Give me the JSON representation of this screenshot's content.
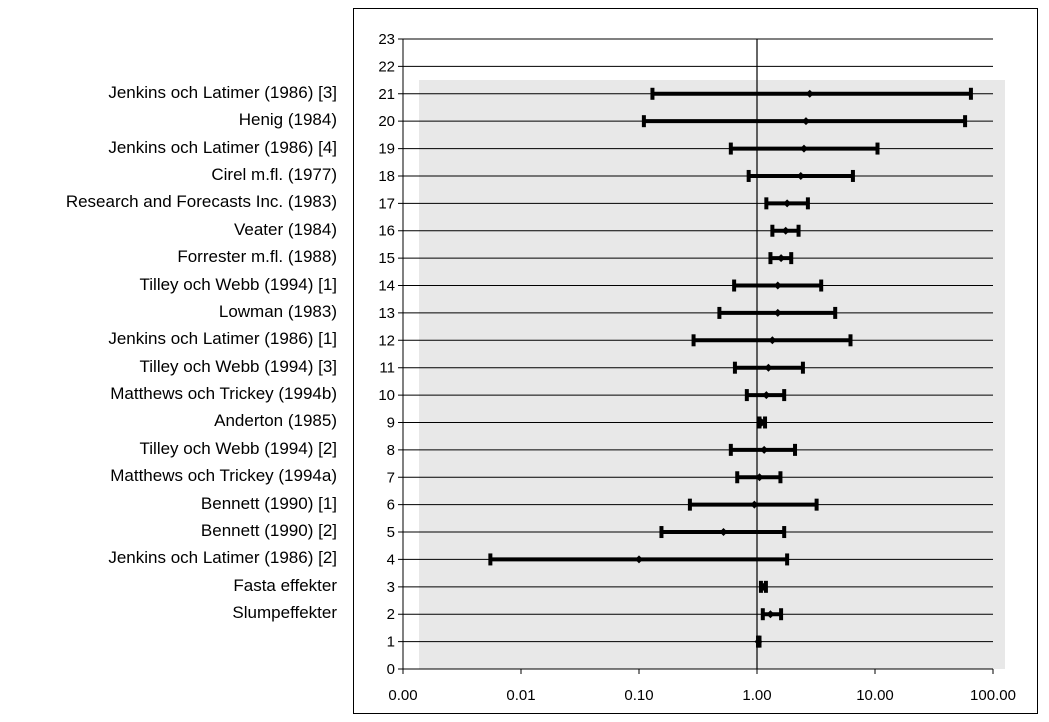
{
  "chart_data": {
    "type": "scatter",
    "variant": "forest-plot",
    "x_scale": "log",
    "x_ticks": [
      0.001,
      0.01,
      0.1,
      1,
      10,
      100
    ],
    "x_tick_labels": [
      "0.00",
      "0.01",
      "0.10",
      "1.00",
      "10.00",
      "100.00"
    ],
    "x_reference_line": 1,
    "y_ticks": [
      0,
      1,
      2,
      3,
      4,
      5,
      6,
      7,
      8,
      9,
      10,
      11,
      12,
      13,
      14,
      15,
      16,
      17,
      18,
      19,
      20,
      21,
      22,
      23
    ],
    "ylim": [
      0,
      23
    ],
    "grid": "horizontal",
    "shaded_plot_area": true,
    "colors": {
      "background": "#e8e8e8",
      "marks": "#000000",
      "grid": "#000000"
    },
    "studies": [
      {
        "y": 21,
        "label": "Jenkins och Latimer (1986) [3]",
        "estimate": 2.8,
        "lower": 0.13,
        "upper": 65
      },
      {
        "y": 20,
        "label": "Henig (1984)",
        "estimate": 2.6,
        "lower": 0.11,
        "upper": 58
      },
      {
        "y": 19,
        "label": "Jenkins och Latimer (1986) [4]",
        "estimate": 2.5,
        "lower": 0.6,
        "upper": 10.5
      },
      {
        "y": 18,
        "label": "Cirel m.fl. (1977)",
        "estimate": 2.35,
        "lower": 0.85,
        "upper": 6.5
      },
      {
        "y": 17,
        "label": "Research and Forecasts Inc. (1983)",
        "estimate": 1.8,
        "lower": 1.2,
        "upper": 2.7
      },
      {
        "y": 16,
        "label": "Veater (1984)",
        "estimate": 1.75,
        "lower": 1.35,
        "upper": 2.25
      },
      {
        "y": 15,
        "label": "Forrester m.fl. (1988)",
        "estimate": 1.6,
        "lower": 1.3,
        "upper": 1.95
      },
      {
        "y": 14,
        "label": "Tilley och Webb (1994) [1]",
        "estimate": 1.5,
        "lower": 0.64,
        "upper": 3.5
      },
      {
        "y": 13,
        "label": "Lowman (1983)",
        "estimate": 1.5,
        "lower": 0.48,
        "upper": 4.6
      },
      {
        "y": 12,
        "label": "Jenkins och Latimer (1986) [1]",
        "estimate": 1.35,
        "lower": 0.29,
        "upper": 6.2
      },
      {
        "y": 11,
        "label": "Tilley och Webb (1994) [3]",
        "estimate": 1.25,
        "lower": 0.65,
        "upper": 2.45
      },
      {
        "y": 10,
        "label": "Matthews och Trickey (1994b)",
        "estimate": 1.2,
        "lower": 0.82,
        "upper": 1.7
      },
      {
        "y": 9,
        "label": "Anderton (1985)",
        "estimate": 1.1,
        "lower": 1.05,
        "upper": 1.17
      },
      {
        "y": 8,
        "label": "Tilley och Webb (1994) [2]",
        "estimate": 1.15,
        "lower": 0.6,
        "upper": 2.1
      },
      {
        "y": 7,
        "label": "Matthews och Trickey (1994a)",
        "estimate": 1.05,
        "lower": 0.68,
        "upper": 1.58
      },
      {
        "y": 6,
        "label": "Bennett (1990) [1]",
        "estimate": 0.95,
        "lower": 0.27,
        "upper": 3.2
      },
      {
        "y": 5,
        "label": "Bennett (1990) [2]",
        "estimate": 0.52,
        "lower": 0.155,
        "upper": 1.7
      },
      {
        "y": 4,
        "label": "Jenkins och Latimer (1986) [2]",
        "estimate": 0.1,
        "lower": 0.0055,
        "upper": 1.8
      },
      {
        "y": 3,
        "label": "Fasta effekter",
        "estimate": 1.13,
        "lower": 1.08,
        "upper": 1.19
      },
      {
        "y": 2,
        "label": "Slumpeffekter",
        "estimate": 1.3,
        "lower": 1.12,
        "upper": 1.6
      },
      {
        "y": 1,
        "label": "",
        "estimate": 1.03,
        "lower": 1.02,
        "upper": 1.05
      }
    ]
  }
}
